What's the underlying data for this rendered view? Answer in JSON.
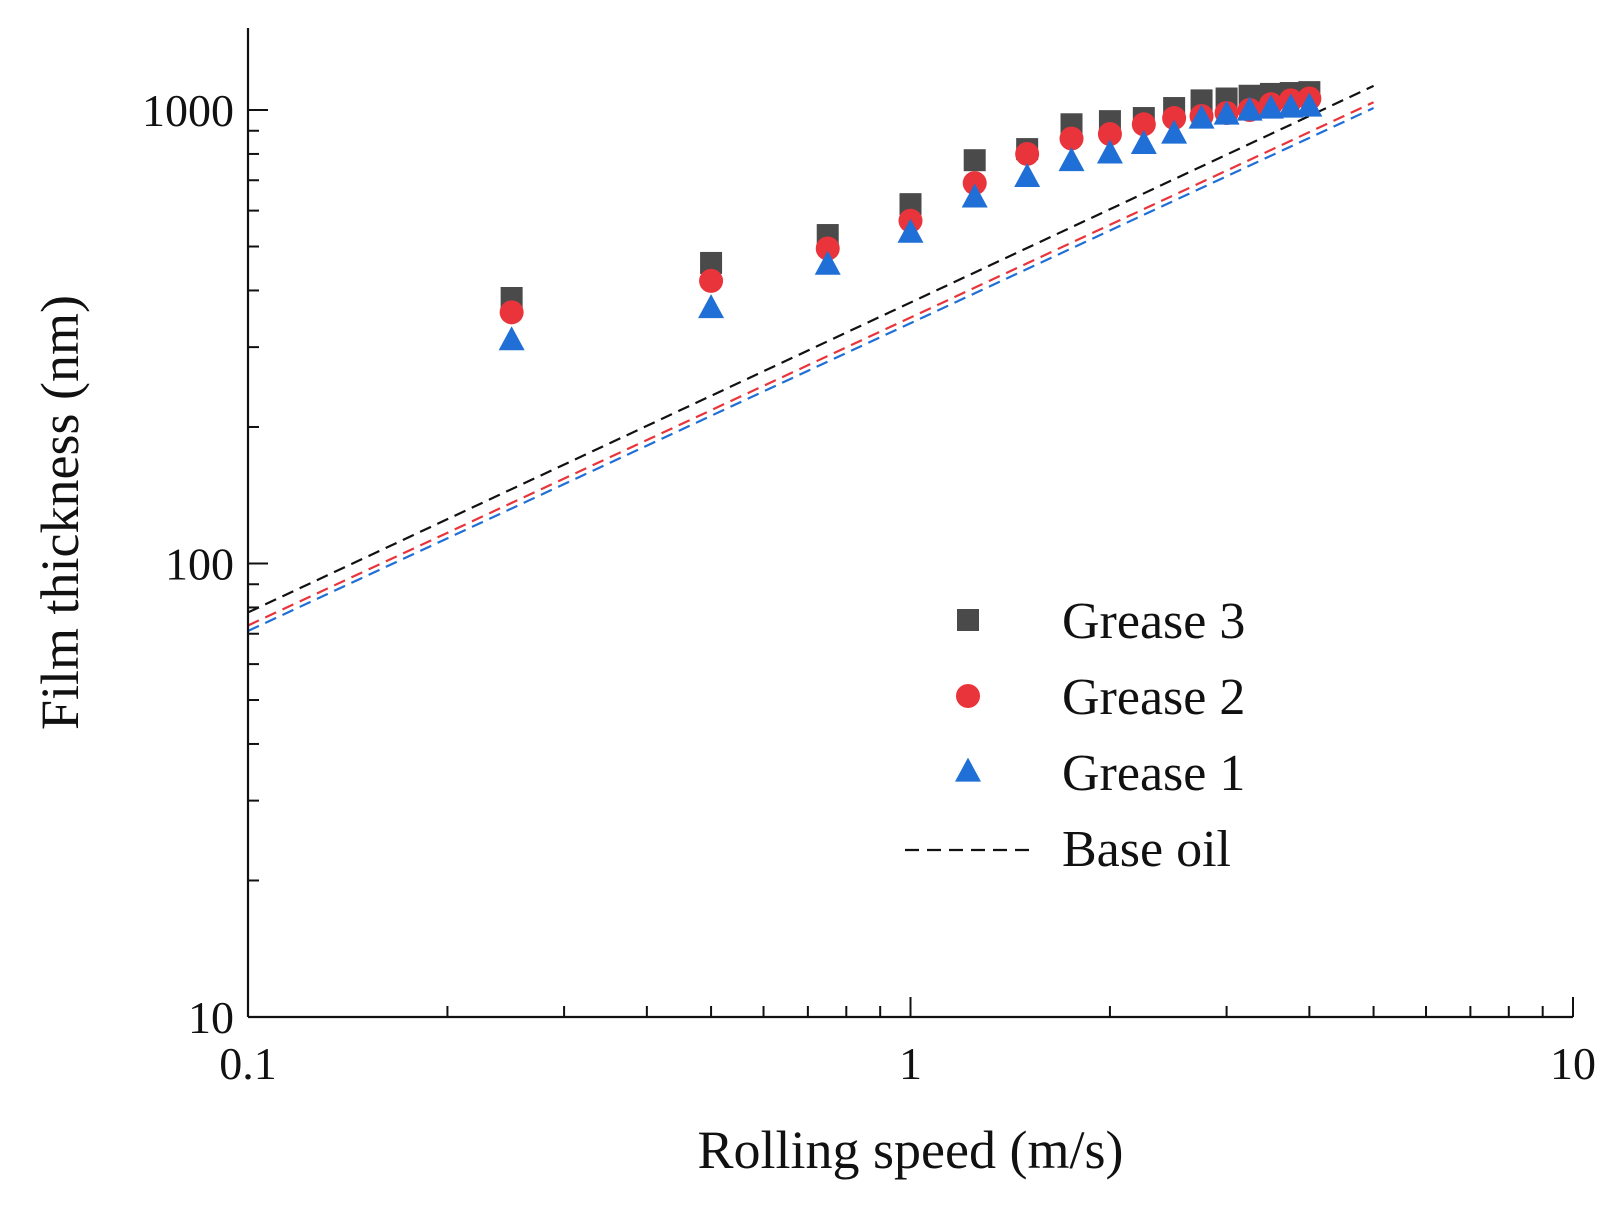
{
  "chart_data": {
    "type": "scatter",
    "title": "",
    "xlabel": "Rolling speed (m/s)",
    "ylabel": "Film thickness (nm)",
    "xscale": "log",
    "yscale": "log",
    "xlim": [
      0.1,
      10
    ],
    "ylim": [
      10,
      1500
    ],
    "x_ticks": [
      0.1,
      1,
      10
    ],
    "x_tick_labels": [
      "0.1",
      "1",
      "10"
    ],
    "y_ticks": [
      10,
      100,
      1000
    ],
    "y_tick_labels": [
      "10",
      "100",
      "1000"
    ],
    "legend_position": "lower-right",
    "series": [
      {
        "name": "Grease 3",
        "marker": "square",
        "color": "#4a4a4a",
        "x": [
          0.25,
          0.5,
          0.75,
          1.0,
          1.25,
          1.5,
          1.75,
          2.0,
          2.25,
          2.5,
          2.75,
          3.0,
          3.25,
          3.5,
          3.75,
          4.0
        ],
        "y": [
          385,
          460,
          530,
          620,
          775,
          820,
          930,
          945,
          960,
          1010,
          1050,
          1060,
          1075,
          1085,
          1090,
          1095
        ]
      },
      {
        "name": "Grease 2",
        "marker": "circle",
        "color": "#e8343a",
        "x": [
          0.25,
          0.5,
          0.75,
          1.0,
          1.25,
          1.5,
          1.75,
          2.0,
          2.25,
          2.5,
          2.75,
          3.0,
          3.25,
          3.5,
          3.75,
          4.0
        ],
        "y": [
          358,
          420,
          495,
          570,
          690,
          800,
          865,
          885,
          930,
          960,
          970,
          985,
          1000,
          1030,
          1050,
          1060
        ]
      },
      {
        "name": "Grease 1",
        "marker": "triangle",
        "color": "#1f6fd6",
        "x": [
          0.25,
          0.5,
          0.75,
          1.0,
          1.25,
          1.5,
          1.75,
          2.0,
          2.25,
          2.5,
          2.75,
          3.0,
          3.25,
          3.5,
          3.75,
          4.0
        ],
        "y": [
          310,
          365,
          455,
          535,
          640,
          710,
          770,
          800,
          840,
          885,
          955,
          975,
          995,
          1005,
          1010,
          1015
        ]
      },
      {
        "name": "Base oil",
        "line_style": "dashed",
        "color": "#111111",
        "x": [
          0.1,
          5.0
        ],
        "y": [
          78,
          1130
        ]
      },
      {
        "name": "Base oil (Grease 2)",
        "line_style": "dashed",
        "color": "#e8343a",
        "x": [
          0.1,
          5.0
        ],
        "y": [
          73,
          1040
        ]
      },
      {
        "name": "Base oil (Grease 1)",
        "line_style": "dashed",
        "color": "#1f6fd6",
        "x": [
          0.1,
          5.0
        ],
        "y": [
          71,
          1010
        ]
      }
    ],
    "legend": [
      {
        "label": "Grease 3",
        "marker": "square",
        "color": "#4a4a4a"
      },
      {
        "label": "Grease 2",
        "marker": "circle",
        "color": "#e8343a"
      },
      {
        "label": "Grease 1",
        "marker": "triangle",
        "color": "#1f6fd6"
      },
      {
        "label": "Base oil",
        "marker": "dashed-line",
        "color": "#111111"
      }
    ]
  }
}
